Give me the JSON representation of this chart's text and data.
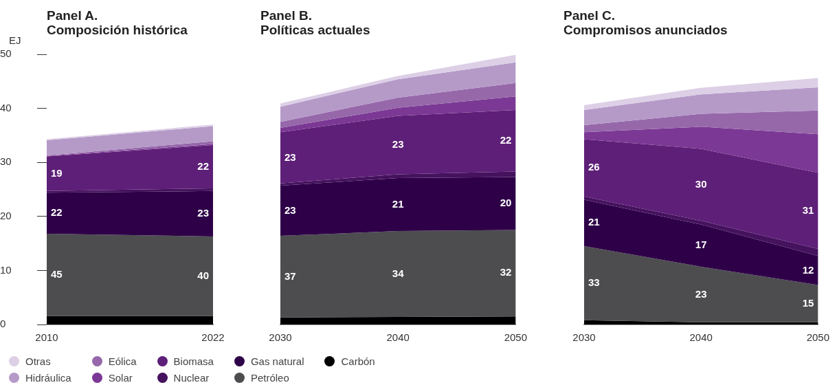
{
  "chart_data": [
    {
      "type": "area",
      "title": "Panel A.",
      "subtitle": "Composición histórica",
      "ylabel": "EJ",
      "stacked": true,
      "legend": "bottom",
      "x": [
        2010,
        2022
      ],
      "xlim": [
        2010,
        2022
      ],
      "xticks": [
        2010,
        2022
      ],
      "ylim": [
        0,
        50
      ],
      "yticks": [
        0,
        10,
        20,
        30,
        40,
        50
      ],
      "series": [
        {
          "name": "Carbón",
          "color": "#000000",
          "values": [
            1.6,
            1.6
          ]
        },
        {
          "name": "Petróleo",
          "color": "#4d4d4f",
          "values": [
            15.2,
            14.7
          ]
        },
        {
          "name": "Gas natural",
          "color": "#2e0048",
          "values": [
            7.6,
            8.4
          ]
        },
        {
          "name": "Nuclear",
          "color": "#45125e",
          "values": [
            0.3,
            0.5
          ]
        },
        {
          "name": "Biomasa",
          "color": "#5e1f78",
          "values": [
            6.4,
            8.0
          ]
        },
        {
          "name": "Solar",
          "color": "#7b3894",
          "values": [
            0.1,
            0.2
          ]
        },
        {
          "name": "Eólica",
          "color": "#9668aa",
          "values": [
            0.1,
            0.5
          ]
        },
        {
          "name": "Hidráulica",
          "color": "#b59ac8",
          "values": [
            2.8,
            2.8
          ]
        },
        {
          "name": "Otras",
          "color": "#dccfe6",
          "values": [
            0.2,
            0.3
          ]
        }
      ],
      "annotations": [
        "45",
        "40",
        "22",
        "23",
        "19",
        "22"
      ]
    },
    {
      "type": "area",
      "title": "Panel B.",
      "subtitle": "Políticas actuales",
      "stacked": true,
      "tick_labels": "x",
      "x": [
        2030,
        2040,
        2050
      ],
      "xlim": [
        2030,
        2050
      ],
      "xticks": [
        2030,
        2040,
        2050
      ],
      "ylim": [
        0,
        50
      ],
      "yticks": [
        0,
        10,
        20,
        30,
        40,
        50
      ],
      "series": [
        {
          "color": "#000000",
          "values": [
            1.3,
            1.4,
            1.5
          ]
        },
        {
          "color": "#4d4d4f",
          "values": [
            15.1,
            15.9,
            16.0
          ]
        },
        {
          "color": "#2e0048",
          "values": [
            9.3,
            9.8,
            9.8
          ]
        },
        {
          "color": "#45125e",
          "values": [
            0.4,
            0.7,
            1.0
          ]
        },
        {
          "color": "#5e1f78",
          "values": [
            9.5,
            10.8,
            11.4
          ]
        },
        {
          "color": "#7b3894",
          "values": [
            0.8,
            1.5,
            2.5
          ]
        },
        {
          "color": "#9668aa",
          "values": [
            1.1,
            1.9,
            2.5
          ]
        },
        {
          "color": "#b59ac8",
          "values": [
            2.8,
            3.4,
            3.8
          ]
        },
        {
          "color": "#dccfe6",
          "values": [
            0.6,
            0.6,
            1.4
          ]
        }
      ],
      "annotations": [
        "37",
        "34",
        "32",
        "23",
        "21",
        "20",
        "23",
        "23",
        "22"
      ]
    },
    {
      "type": "area",
      "title": "Panel C.",
      "subtitle": "Compromisos anunciados",
      "stacked": true,
      "tick_labels": "x",
      "x": [
        2030,
        2040,
        2050
      ],
      "xlim": [
        2030,
        2050
      ],
      "xticks": [
        2030,
        2040,
        2050
      ],
      "ylim": [
        0,
        50
      ],
      "yticks": [
        0,
        10,
        20,
        30,
        40,
        50
      ],
      "series": [
        {
          "color": "#000000",
          "values": [
            0.8,
            0.4,
            0.4
          ]
        },
        {
          "color": "#4d4d4f",
          "values": [
            13.7,
            10.3,
            6.9
          ]
        },
        {
          "color": "#2e0048",
          "values": [
            8.6,
            7.8,
            5.4
          ]
        },
        {
          "color": "#45125e",
          "values": [
            0.6,
            0.7,
            1.3
          ]
        },
        {
          "color": "#5e1f78",
          "values": [
            10.6,
            13.3,
            14.1
          ]
        },
        {
          "color": "#7b3894",
          "values": [
            1.3,
            4.1,
            7.1
          ]
        },
        {
          "color": "#9668aa",
          "values": [
            1.3,
            2.4,
            4.4
          ]
        },
        {
          "color": "#b59ac8",
          "values": [
            2.8,
            3.6,
            4.3
          ]
        },
        {
          "color": "#dccfe6",
          "values": [
            0.9,
            1.2,
            1.7
          ]
        }
      ],
      "annotations": [
        "33",
        "23",
        "15",
        "21",
        "17",
        "12",
        "26",
        "30",
        "31"
      ]
    }
  ]
}
